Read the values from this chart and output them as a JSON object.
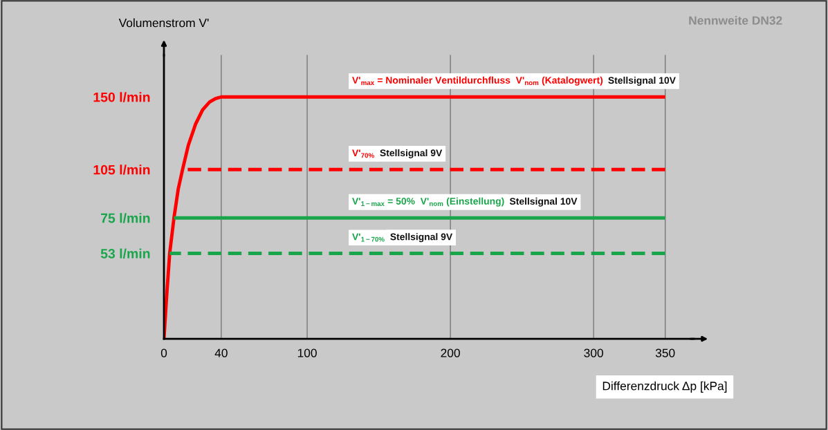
{
  "chart_data": {
    "type": "line",
    "ylabel": "Volumenstrom V'",
    "xlabel": "Differenzdruck Δp [kPa]",
    "xlim": [
      0,
      370
    ],
    "ylim": [
      0,
      176
    ],
    "xticks": [
      0,
      40,
      100,
      200,
      300,
      350
    ],
    "yticks": [
      {
        "value": 53,
        "label": "53 l/min"
      },
      {
        "value": 75,
        "label": "75 l/min"
      },
      {
        "value": 105,
        "label": "105 l/min"
      },
      {
        "value": 150,
        "label": "150 l/min"
      }
    ],
    "grid": "x",
    "legend": false,
    "marker": "none",
    "series": [
      {
        "name": "V'$_{max}$ = Nominaler Ventildurchfluss  V'$_{nom}$ (Katalogwert)",
        "color": "#ff0000",
        "line_style": "solid",
        "x": [
          0,
          2,
          4,
          7,
          10,
          13,
          17,
          22,
          27,
          32,
          36,
          40,
          350
        ],
        "values": [
          0,
          28,
          53,
          75,
          93,
          105,
          120,
          133,
          142,
          147,
          149,
          150,
          150
        ]
      },
      {
        "name": "V'$_{70%}$",
        "color": "#ff0000",
        "line_style": "dashed",
        "x": [
          13,
          350
        ],
        "values": [
          105,
          105
        ]
      },
      {
        "name": "V'$_{1−max}$ = 50%  V'$_{nom}$ (Einstellung)",
        "color": "#19a64b",
        "line_style": "solid",
        "x": [
          7,
          350
        ],
        "values": [
          75,
          75
        ]
      },
      {
        "name": "V'$_{1−70%}$",
        "color": "#19a64b",
        "line_style": "dashed",
        "x": [
          4,
          350
        ],
        "values": [
          53,
          53
        ]
      }
    ],
    "annotations": [
      "Stellsignal 10V",
      "Stellsignal 9V",
      "Stellsignal 10V",
      "Stellsignal 9V",
      "Nennweite DN32"
    ]
  }
}
